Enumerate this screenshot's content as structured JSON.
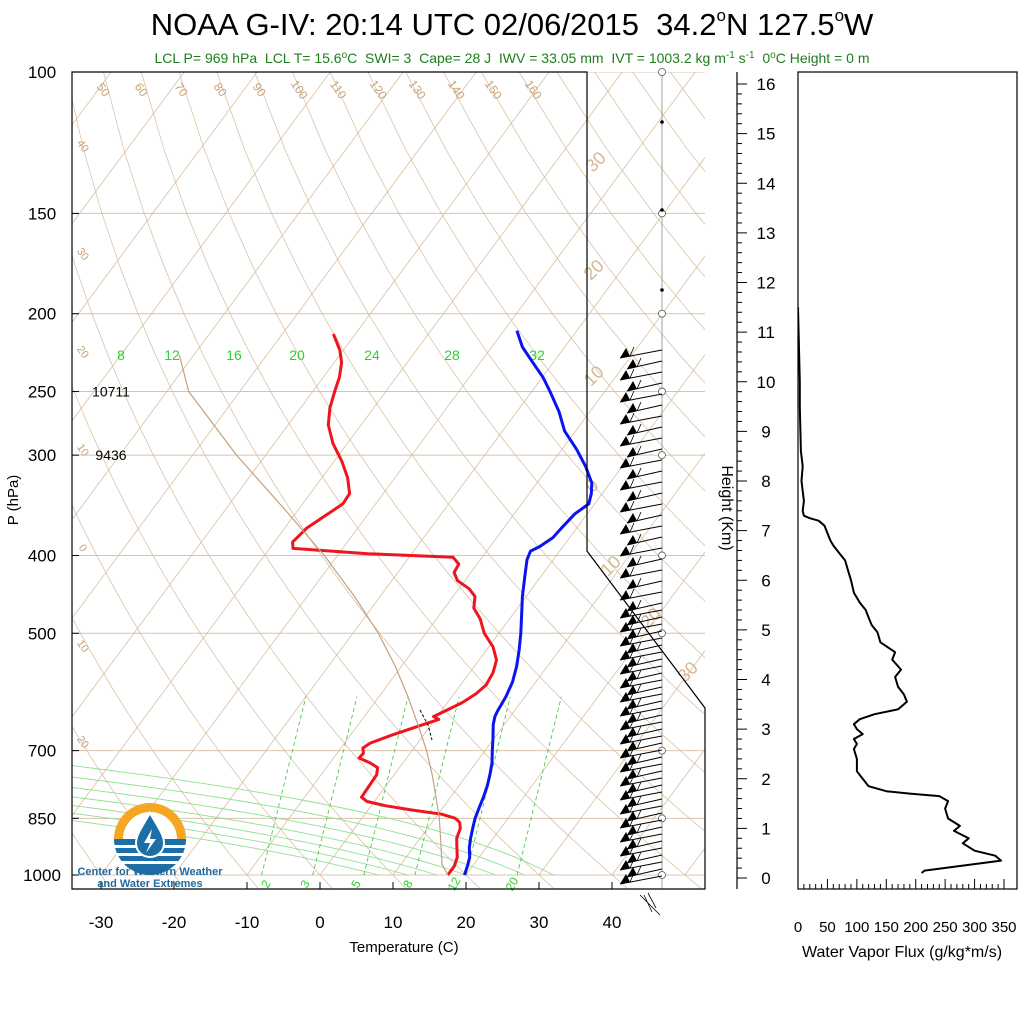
{
  "title": {
    "platform": "NOAA G-IV:",
    "time": "20:14 UTC 02/06/2015",
    "lat": "34.2",
    "lat_hemi": "N",
    "lon": "127.5",
    "lon_hemi": "W",
    "degree_mark": "o"
  },
  "stats": {
    "lcl_p": "LCL P= 969 hPa",
    "lcl_t_pre": "LCL T= 15.6",
    "lcl_t_unit": "C",
    "swi": "SWI= 3",
    "cape": "Cape= 28 J",
    "iwv": "IWV = 33.05 mm",
    "ivt_pre": "IVT = 1003.2 kg m",
    "ivt_exp1": "-1",
    "ivt_mid": " s",
    "ivt_exp2": "-1",
    "zero_height_pre": "0",
    "zero_height_post": "C Height = 0 m"
  },
  "logo": {
    "line1": "Center for Western Weather",
    "line2": "and Water Extremes"
  },
  "chart_data": [
    {
      "type": "line",
      "subtype": "skew-T log-P sounding",
      "xlabel": "Temperature (C)",
      "ylabel": "P (hPa)",
      "x_ticks": [
        -30,
        -20,
        -10,
        0,
        10,
        20,
        30,
        40
      ],
      "y_ticks": [
        100,
        150,
        200,
        250,
        300,
        400,
        500,
        700,
        850,
        1000
      ],
      "ylim": [
        1000,
        100
      ],
      "y_scale": "log",
      "height_labels": [
        {
          "p": 250,
          "label": "10711"
        },
        {
          "p": 300,
          "label": "9436"
        }
      ],
      "mixing_ratio_labels_top": [
        "8",
        "12",
        "16",
        "20",
        "24",
        "28",
        "32"
      ],
      "mixing_ratio_labels_bottom": [
        "2",
        "3",
        "5",
        "8",
        "12",
        "20"
      ],
      "adiabat_labels_top": [
        "50",
        "60",
        "70",
        "80",
        "90",
        "100",
        "110",
        "120",
        "130",
        "140",
        "150",
        "160"
      ],
      "isotherm_labels_left": [
        "40",
        "30",
        "20",
        "10",
        "0",
        "10",
        "20"
      ],
      "isotherm_labels_right": [
        "30",
        "20",
        "10",
        "0",
        "10",
        "20",
        "30"
      ],
      "series": [
        {
          "name": "Temperature",
          "color": "#0a14f0",
          "points": [
            [
              1000,
              19.8
            ],
            [
              975,
              19.3
            ],
            [
              950,
              18.7
            ],
            [
              925,
              17.7
            ],
            [
              900,
              16.9
            ],
            [
              875,
              16.2
            ],
            [
              850,
              15.5
            ],
            [
              825,
              15.0
            ],
            [
              800,
              14.5
            ],
            [
              775,
              13.9
            ],
            [
              750,
              13.1
            ],
            [
              725,
              12.2
            ],
            [
              700,
              11.0
            ],
            [
              675,
              9.8
            ],
            [
              650,
              8.5
            ],
            [
              635,
              7.9
            ],
            [
              625,
              7.7
            ],
            [
              600,
              7.4
            ],
            [
              575,
              6.8
            ],
            [
              550,
              5.8
            ],
            [
              525,
              4.5
            ],
            [
              500,
              3.0
            ],
            [
              475,
              1.3
            ],
            [
              450,
              -0.5
            ],
            [
              425,
              -2.2
            ],
            [
              405,
              -3.6
            ],
            [
              395,
              -4.0
            ],
            [
              390,
              -3.2
            ],
            [
              380,
              -2.3
            ],
            [
              370,
              -2.1
            ],
            [
              355,
              -1.7
            ],
            [
              345,
              -0.8
            ],
            [
              335,
              -1.5
            ],
            [
              325,
              -2.5
            ],
            [
              310,
              -5.0
            ],
            [
              295,
              -8.0
            ],
            [
              280,
              -11.5
            ],
            [
              265,
              -14.2
            ],
            [
              250,
              -17.5
            ],
            [
              240,
              -19.9
            ],
            [
              230,
              -22.8
            ],
            [
              220,
              -25.8
            ],
            [
              210,
              -28.2
            ]
          ]
        },
        {
          "name": "Dewpoint",
          "color": "#f0141e",
          "points": [
            [
              1000,
              17.5
            ],
            [
              975,
              17.5
            ],
            [
              950,
              17.0
            ],
            [
              925,
              16.0
            ],
            [
              900,
              15.0
            ],
            [
              875,
              14.5
            ],
            [
              860,
              13.8
            ],
            [
              850,
              12.8
            ],
            [
              840,
              10.5
            ],
            [
              830,
              6.0
            ],
            [
              820,
              2.0
            ],
            [
              810,
              -1.0
            ],
            [
              800,
              -2.2
            ],
            [
              775,
              -2.3
            ],
            [
              750,
              -2.4
            ],
            [
              735,
              -3.0
            ],
            [
              725,
              -4.5
            ],
            [
              715,
              -6.5
            ],
            [
              705,
              -6.4
            ],
            [
              695,
              -7.0
            ],
            [
              685,
              -6.5
            ],
            [
              670,
              -4.4
            ],
            [
              655,
              -2.0
            ],
            [
              640,
              0.5
            ],
            [
              635,
              -0.5
            ],
            [
              625,
              0.5
            ],
            [
              610,
              2.0
            ],
            [
              595,
              3.0
            ],
            [
              580,
              3.5
            ],
            [
              560,
              3.2
            ],
            [
              540,
              2.4
            ],
            [
              520,
              0.6
            ],
            [
              500,
              -2.0
            ],
            [
              480,
              -4.0
            ],
            [
              465,
              -6.0
            ],
            [
              450,
              -7.0
            ],
            [
              440,
              -8.6
            ],
            [
              430,
              -11.0
            ],
            [
              420,
              -12.3
            ],
            [
              410,
              -12.5
            ],
            [
              402,
              -14.0
            ],
            [
              398,
              -26.0
            ],
            [
              392,
              -36.8
            ],
            [
              385,
              -37.5
            ],
            [
              370,
              -37.0
            ],
            [
              355,
              -35.5
            ],
            [
              345,
              -34.5
            ],
            [
              335,
              -34.6
            ],
            [
              320,
              -36.5
            ],
            [
              305,
              -39.0
            ],
            [
              290,
              -42.0
            ],
            [
              275,
              -44.5
            ],
            [
              262,
              -46.0
            ],
            [
              250,
              -47.0
            ],
            [
              240,
              -47.8
            ],
            [
              230,
              -49.0
            ],
            [
              222,
              -50.5
            ],
            [
              212,
              -53.0
            ]
          ]
        },
        {
          "name": "Parcel",
          "color": "#c8a07a",
          "points": [
            [
              1000,
              17.5
            ],
            [
              969,
              15.6
            ],
            [
              900,
              12.8
            ],
            [
              850,
              10.6
            ],
            [
              800,
              8.0
            ],
            [
              750,
              5.2
            ],
            [
              700,
              2.0
            ],
            [
              650,
              -1.8
            ],
            [
              600,
              -6.0
            ],
            [
              550,
              -10.8
            ],
            [
              500,
              -16.5
            ],
            [
              450,
              -23.5
            ],
            [
              400,
              -31.8
            ],
            [
              350,
              -42.0
            ],
            [
              300,
              -54.0
            ],
            [
              250,
              -67.0
            ],
            [
              225,
              -72.0
            ]
          ]
        }
      ]
    },
    {
      "type": "line",
      "xlabel": "Water Vapor Flux (g/kg*m/s)",
      "ylabel": "Height (Km)",
      "x_ticks": [
        "0",
        "50",
        "100",
        "150",
        "200",
        "250",
        "300",
        "350"
      ],
      "xlim": [
        0,
        350
      ],
      "y_ticks": [
        "0",
        "1",
        "2",
        "3",
        "4",
        "5",
        "6",
        "7",
        "8",
        "9",
        "10",
        "11",
        "12",
        "13",
        "14",
        "15",
        "16"
      ],
      "ylim": [
        0,
        16.5
      ],
      "series": [
        {
          "name": "Water Vapor Flux",
          "color": "#000000",
          "points": [
            [
              210,
              0.1
            ],
            [
              215,
              0.15
            ],
            [
              280,
              0.25
            ],
            [
              345,
              0.35
            ],
            [
              335,
              0.45
            ],
            [
              300,
              0.55
            ],
            [
              280,
              0.7
            ],
            [
              290,
              0.8
            ],
            [
              265,
              0.95
            ],
            [
              275,
              1.05
            ],
            [
              255,
              1.2
            ],
            [
              250,
              1.4
            ],
            [
              255,
              1.55
            ],
            [
              240,
              1.65
            ],
            [
              190,
              1.7
            ],
            [
              150,
              1.75
            ],
            [
              120,
              1.85
            ],
            [
              110,
              2.0
            ],
            [
              100,
              2.15
            ],
            [
              100,
              2.4
            ],
            [
              95,
              2.6
            ],
            [
              100,
              2.7
            ],
            [
              95,
              2.8
            ],
            [
              110,
              2.9
            ],
            [
              100,
              3.0
            ],
            [
              95,
              3.1
            ],
            [
              105,
              3.2
            ],
            [
              130,
              3.3
            ],
            [
              170,
              3.4
            ],
            [
              185,
              3.55
            ],
            [
              180,
              3.7
            ],
            [
              170,
              3.85
            ],
            [
              165,
              4.05
            ],
            [
              175,
              4.2
            ],
            [
              160,
              4.4
            ],
            [
              165,
              4.55
            ],
            [
              140,
              4.75
            ],
            [
              135,
              4.95
            ],
            [
              125,
              5.1
            ],
            [
              120,
              5.25
            ],
            [
              115,
              5.4
            ],
            [
              105,
              5.55
            ],
            [
              95,
              5.75
            ],
            [
              90,
              6.0
            ],
            [
              85,
              6.2
            ],
            [
              80,
              6.4
            ],
            [
              70,
              6.55
            ],
            [
              60,
              6.7
            ],
            [
              55,
              6.8
            ],
            [
              50,
              6.95
            ],
            [
              45,
              7.1
            ],
            [
              35,
              7.2
            ],
            [
              20,
              7.25
            ],
            [
              10,
              7.3
            ],
            [
              8,
              7.4
            ],
            [
              10,
              7.6
            ],
            [
              8,
              7.8
            ],
            [
              6,
              8.0
            ],
            [
              8,
              8.3
            ],
            [
              5,
              8.6
            ],
            [
              4,
              9.0
            ],
            [
              3,
              9.5
            ],
            [
              3,
              10.0
            ],
            [
              2,
              10.5
            ],
            [
              1,
              11.0
            ],
            [
              0,
              11.5
            ]
          ]
        }
      ]
    }
  ]
}
